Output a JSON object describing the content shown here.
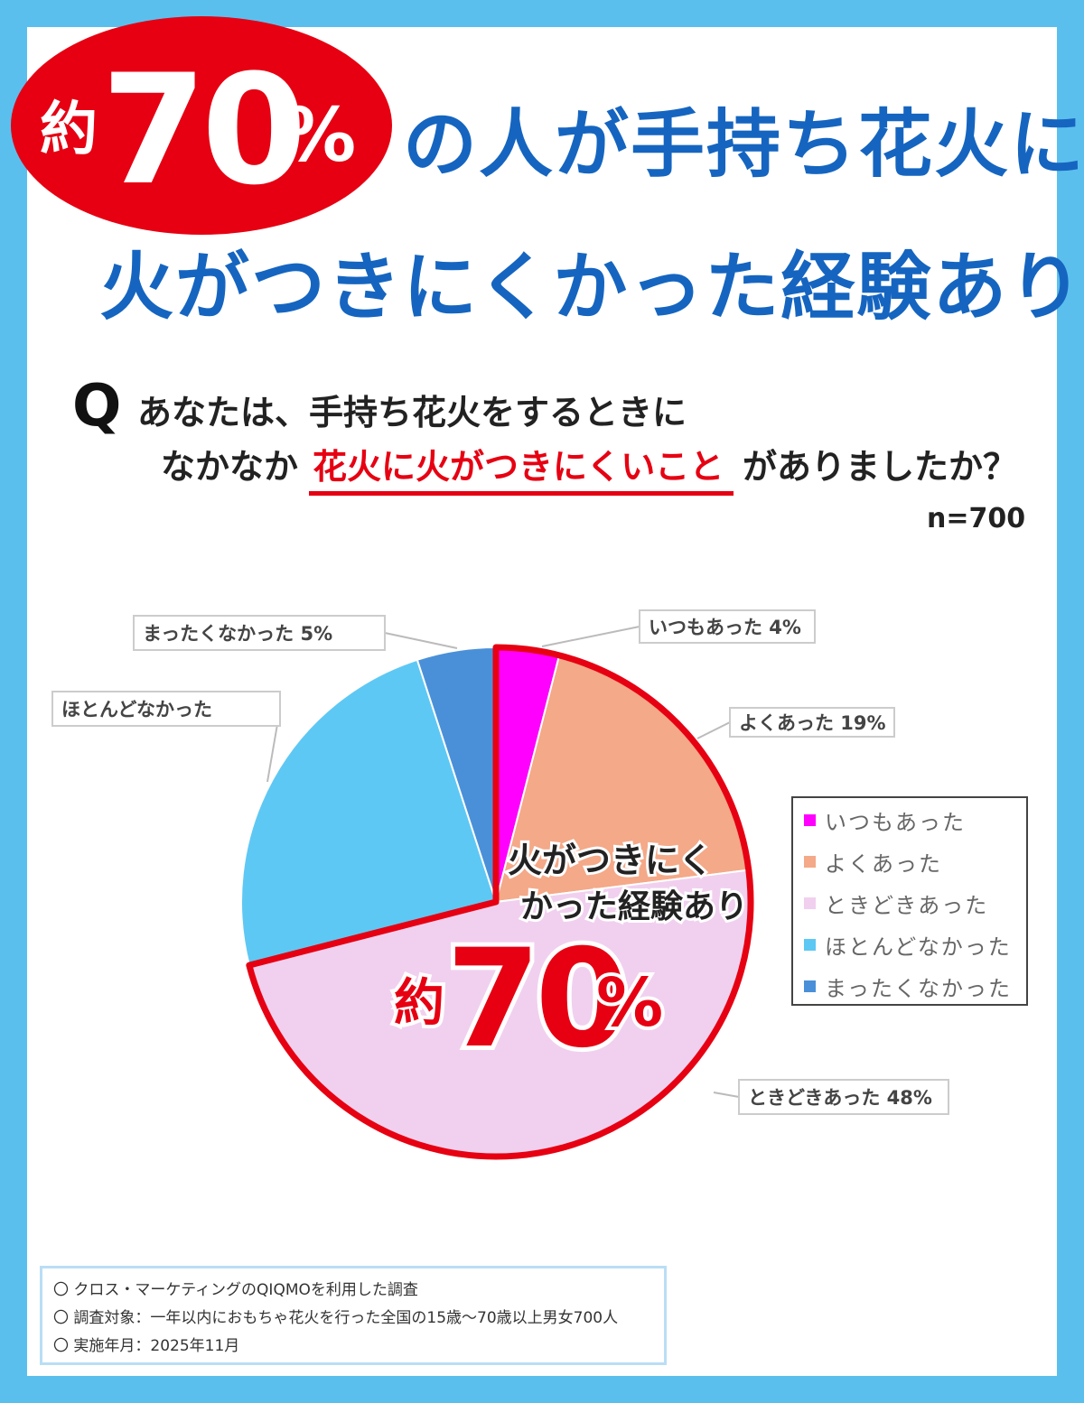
{
  "headline": {
    "badge_prefix": "約",
    "badge_number": "70",
    "badge_unit": "%",
    "line1": "の人が手持ち花火に",
    "line2": "火がつきにくかった経験あり"
  },
  "question": {
    "mark": "Q",
    "line1": "あなたは、手持ち花火をするときに",
    "line2_prefix": "なかなか",
    "line2_highlight": "花火に火がつきにくいこと",
    "line2_suffix": "がありましたか？",
    "sample_size": "n=700"
  },
  "overlay": {
    "line1": "火がつきにく",
    "line2": "かった経験あり",
    "prefix": "約",
    "number": "70",
    "unit": "%"
  },
  "colors": {
    "accent_red": "#e60012",
    "headline_blue": "#1565c0",
    "background_blue": "#5bbfee"
  },
  "chart_data": {
    "type": "pie",
    "series": [
      {
        "name": "いつもあった",
        "value": 4,
        "color": "#ff00ff",
        "callout": "いつもあった 4%"
      },
      {
        "name": "よくあった",
        "value": 19,
        "color": "#f4a988",
        "callout": "よくあった 19%"
      },
      {
        "name": "ときどきあった",
        "value": 48,
        "color": "#f1d0ef",
        "callout": "ときどきあった 48%"
      },
      {
        "name": "ほとんどなかった",
        "value": 24,
        "color": "#5ec8f4",
        "callout": "ほとんどなかった"
      },
      {
        "name": "まったくなかった",
        "value": 5,
        "color": "#4a90d9",
        "callout": "まったくなかった 5%"
      }
    ],
    "highlighted_total": "約70%",
    "legend_position": "right"
  },
  "notes": [
    "〇 クロス・マーケティングのQIQMOを利用した調査",
    "〇 調査対象：一年以内におもちゃ花火を行った全国の15歳〜70歳以上男女700人",
    "〇 実施年月：2025年11月"
  ]
}
